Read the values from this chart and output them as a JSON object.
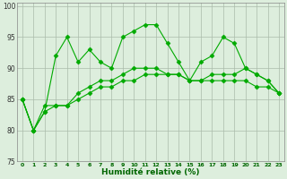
{
  "xlabel": "Humidité relative (%)",
  "x": [
    0,
    1,
    2,
    3,
    4,
    5,
    6,
    7,
    8,
    9,
    10,
    11,
    12,
    13,
    14,
    15,
    16,
    17,
    18,
    19,
    20,
    21,
    22,
    23
  ],
  "line1": [
    85,
    80,
    83,
    92,
    95,
    91,
    93,
    91,
    90,
    95,
    96,
    97,
    97,
    94,
    91,
    88,
    91,
    92,
    95,
    94,
    90,
    89,
    88,
    86
  ],
  "line2": [
    85,
    80,
    84,
    84,
    84,
    86,
    87,
    88,
    88,
    89,
    90,
    90,
    90,
    89,
    89,
    88,
    88,
    89,
    89,
    89,
    90,
    89,
    88,
    86
  ],
  "line3": [
    85,
    80,
    83,
    84,
    84,
    85,
    86,
    87,
    87,
    88,
    88,
    89,
    89,
    89,
    89,
    88,
    88,
    88,
    88,
    88,
    88,
    87,
    87,
    86
  ],
  "line_color": "#00aa00",
  "bg_color": "#ddeedd",
  "grid_color": "#aabbaa",
  "ylim": [
    75,
    100
  ],
  "yticks": [
    75,
    80,
    85,
    90,
    95,
    100
  ],
  "xticks": [
    0,
    1,
    2,
    3,
    4,
    5,
    6,
    7,
    8,
    9,
    10,
    11,
    12,
    13,
    14,
    15,
    16,
    17,
    18,
    19,
    20,
    21,
    22,
    23
  ]
}
